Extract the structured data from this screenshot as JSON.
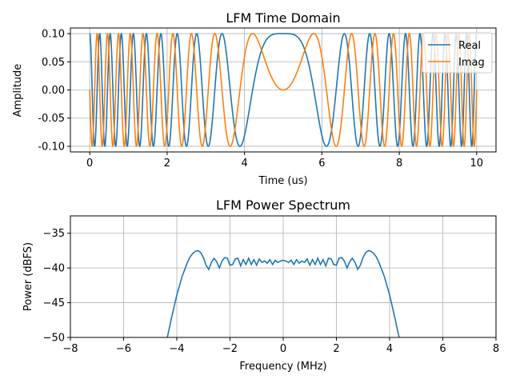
{
  "chart_data": [
    {
      "type": "line",
      "title": "LFM Time Domain",
      "xlabel": "Time (us)",
      "ylabel": "Amplitude",
      "xlim": [
        -0.5,
        10.5
      ],
      "ylim": [
        -0.11,
        0.11
      ],
      "xticks": [
        0,
        2,
        4,
        6,
        8,
        10
      ],
      "yticks": [
        -0.1,
        -0.05,
        0.0,
        0.05,
        0.1
      ],
      "xtick_labels": [
        "0",
        "2",
        "4",
        "6",
        "8",
        "10"
      ],
      "ytick_labels": [
        "-0.10",
        "-0.05",
        "0.00",
        "0.05",
        "0.10"
      ],
      "grid": true,
      "legend_position": "top-right",
      "signal": {
        "duration_us": 10,
        "bandwidth_mhz": 8,
        "amplitude": 0.1,
        "center_time_us": 5
      },
      "series": [
        {
          "name": "Real",
          "component": "real",
          "color": "#1f77b4"
        },
        {
          "name": "Imag",
          "component": "imag",
          "color": "#ff7f0e"
        }
      ]
    },
    {
      "type": "line",
      "title": "LFM Power Spectrum",
      "xlabel": "Frequency (MHz)",
      "ylabel": "Power (dBFS)",
      "xlim": [
        -8,
        8
      ],
      "ylim": [
        -50,
        -32.5
      ],
      "xticks": [
        -8,
        -6,
        -4,
        -2,
        0,
        2,
        4,
        6,
        8
      ],
      "yticks": [
        -50,
        -45,
        -40,
        -35
      ],
      "xtick_labels": [
        "−8",
        "−6",
        "−4",
        "−2",
        "0",
        "2",
        "4",
        "6",
        "8"
      ],
      "ytick_labels": [
        "−50",
        "−45",
        "−40",
        "−35"
      ],
      "grid": true,
      "series": [
        {
          "color": "#1f77b4",
          "x": [
            -4.4,
            -4.2,
            -4.0,
            -3.8,
            -3.6,
            -3.5,
            -3.4,
            -3.3,
            -3.2,
            -3.1,
            -3.0,
            -2.9,
            -2.8,
            -2.7,
            -2.6,
            -2.5,
            -2.4,
            -2.3,
            -2.2,
            -2.1,
            -2.0,
            -1.9,
            -1.8,
            -1.7,
            -1.6,
            -1.5,
            -1.4,
            -1.3,
            -1.2,
            -1.1,
            -1.0,
            -0.9,
            -0.8,
            -0.7,
            -0.6,
            -0.5,
            -0.4,
            -0.3,
            -0.2,
            -0.1,
            0.0,
            0.1,
            0.2,
            0.3,
            0.4,
            0.5,
            0.6,
            0.7,
            0.8,
            0.9,
            1.0,
            1.1,
            1.2,
            1.3,
            1.4,
            1.5,
            1.6,
            1.7,
            1.8,
            1.9,
            2.0,
            2.1,
            2.2,
            2.3,
            2.4,
            2.5,
            2.6,
            2.7,
            2.8,
            2.9,
            3.0,
            3.1,
            3.2,
            3.3,
            3.4,
            3.5,
            3.6,
            3.8,
            4.0,
            4.2,
            4.4
          ],
          "y": [
            -50.8,
            -47.2,
            -43.9,
            -41.2,
            -39.2,
            -38.4,
            -37.9,
            -37.6,
            -37.5,
            -37.8,
            -38.5,
            -39.6,
            -40.2,
            -39.2,
            -38.6,
            -39.1,
            -40.0,
            -39.0,
            -38.5,
            -38.6,
            -39.6,
            -39.5,
            -38.7,
            -38.6,
            -39.7,
            -38.8,
            -39.5,
            -38.6,
            -39.5,
            -38.8,
            -39.6,
            -38.7,
            -39.2,
            -39.0,
            -39.3,
            -38.8,
            -39.5,
            -38.9,
            -39.2,
            -39.0,
            -38.9,
            -39.0,
            -39.2,
            -38.9,
            -39.5,
            -38.8,
            -39.3,
            -39.0,
            -39.2,
            -38.7,
            -39.6,
            -38.8,
            -39.5,
            -38.6,
            -39.5,
            -38.8,
            -39.7,
            -38.6,
            -38.7,
            -39.5,
            -39.6,
            -38.6,
            -38.5,
            -39.0,
            -40.0,
            -39.1,
            -38.6,
            -39.2,
            -40.2,
            -39.6,
            -38.5,
            -37.8,
            -37.5,
            -37.6,
            -37.9,
            -38.4,
            -39.2,
            -41.2,
            -43.9,
            -47.2,
            -50.8
          ]
        }
      ]
    }
  ]
}
